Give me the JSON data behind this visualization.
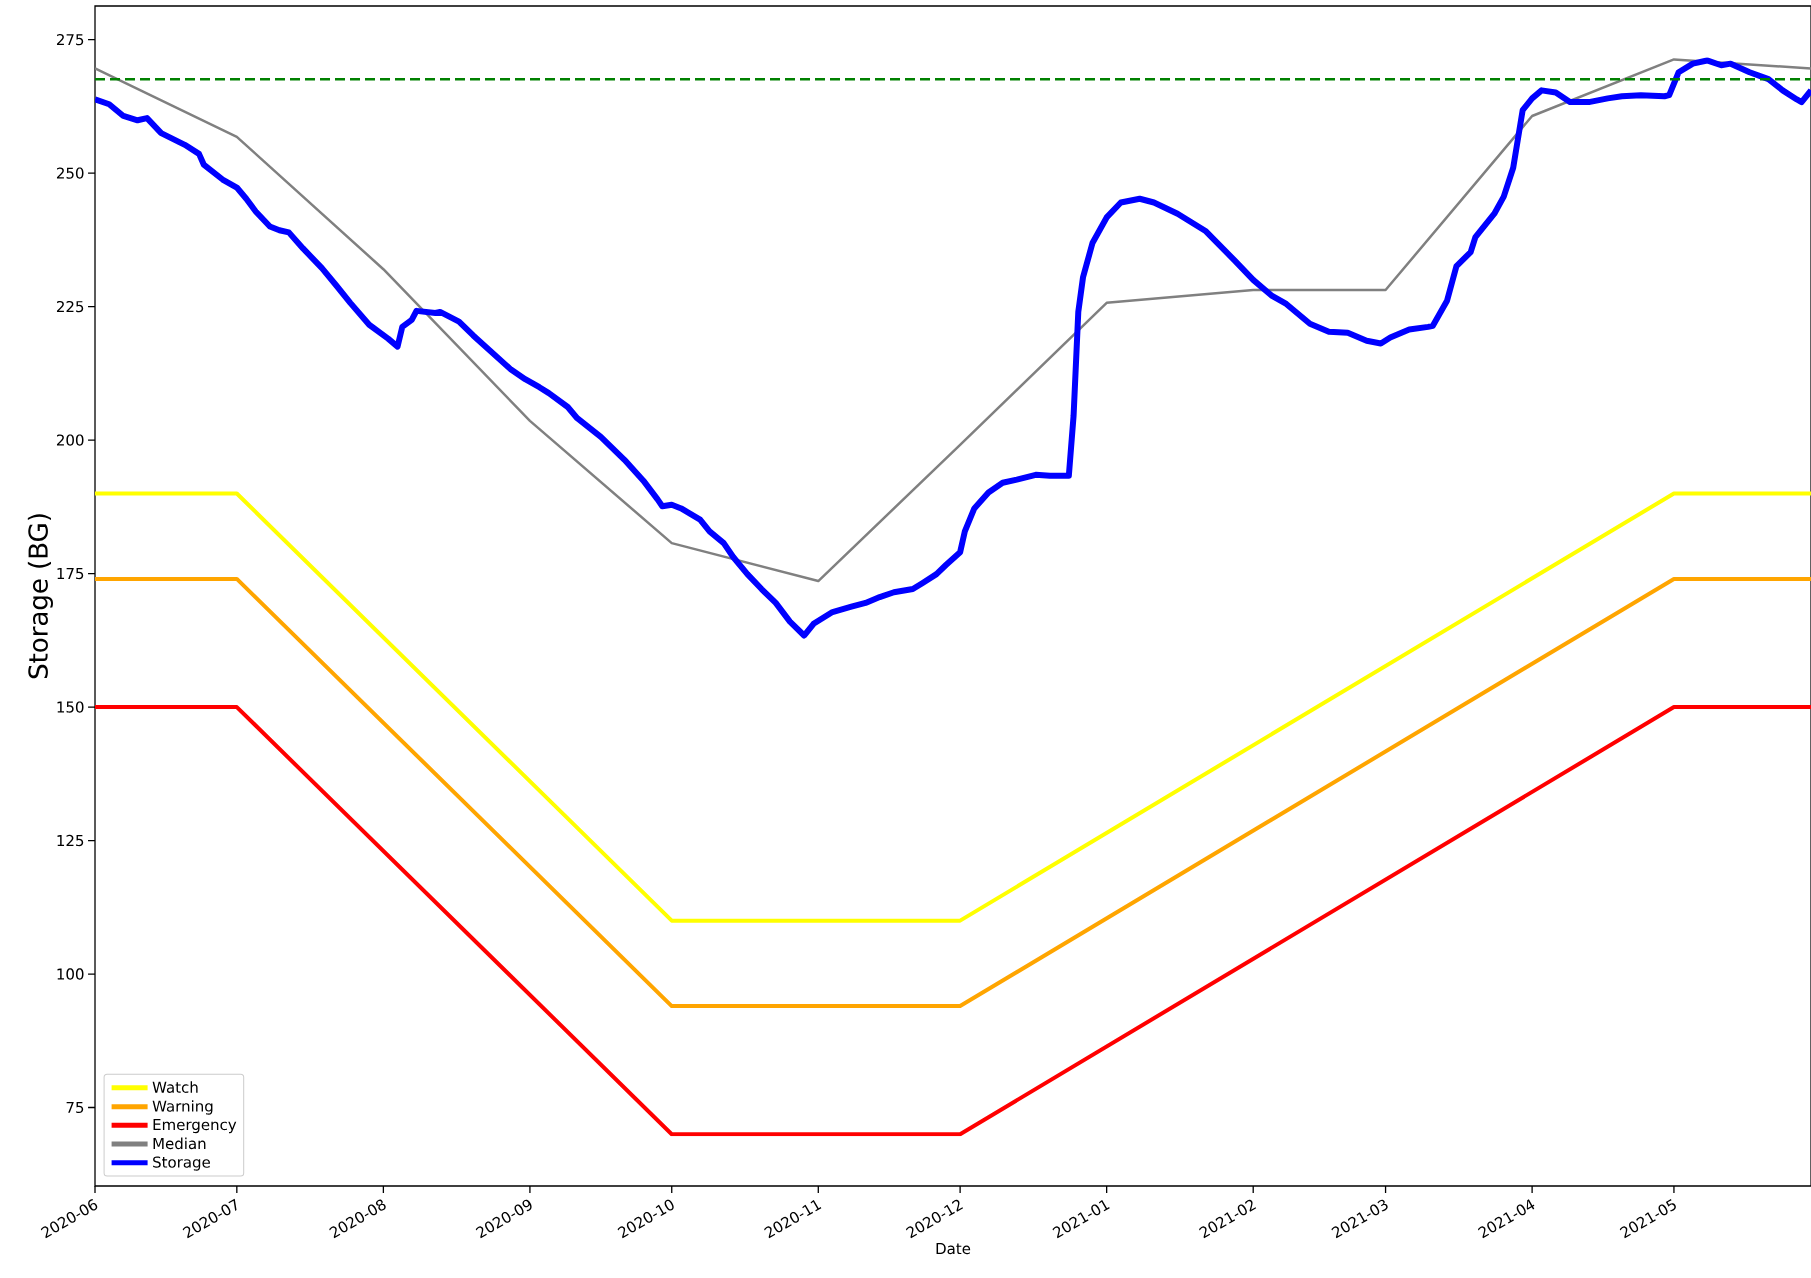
{
  "chart_data": {
    "type": "line",
    "xlabel": "Date",
    "ylabel": "Storage (BG)",
    "xlim": [
      "2020-06-01",
      "2021-05-30"
    ],
    "ylim": [
      60.3,
      281.3
    ],
    "xticks": [
      "2020-06",
      "2020-07",
      "2020-08",
      "2020-09",
      "2020-10",
      "2020-11",
      "2020-12",
      "2021-01",
      "2021-02",
      "2021-03",
      "2021-04",
      "2021-05"
    ],
    "yticks": [
      75,
      100,
      125,
      150,
      175,
      200,
      225,
      250,
      275
    ],
    "grid": false,
    "legend": "bottom left",
    "marker": "none",
    "ref_lines": [
      {
        "axis": "y",
        "value": 267.6,
        "color": "#008000",
        "line_style": "dashed"
      }
    ],
    "series": [
      {
        "name": "Watch",
        "color": "#ffff00",
        "x": [
          "2020-06-01",
          "2020-07-01",
          "2020-10-01",
          "2020-12-01",
          "2021-05-01",
          "2021-05-30"
        ],
        "values": [
          190,
          190,
          110,
          110,
          190,
          190
        ]
      },
      {
        "name": "Warning",
        "color": "#ffa500",
        "x": [
          "2020-06-01",
          "2020-07-01",
          "2020-10-01",
          "2020-12-01",
          "2021-05-01",
          "2021-05-30"
        ],
        "values": [
          174,
          174,
          94,
          94,
          174,
          174
        ]
      },
      {
        "name": "Emergency",
        "color": "#ff0000",
        "x": [
          "2020-06-01",
          "2020-07-01",
          "2020-10-01",
          "2020-12-01",
          "2021-05-01",
          "2021-05-30"
        ],
        "values": [
          150,
          150,
          70,
          70,
          150,
          150
        ]
      },
      {
        "name": "Median",
        "color": "#808080",
        "x": [
          "2020-06-01",
          "2020-07-01",
          "2020-08-01",
          "2020-09-01",
          "2020-10-01",
          "2020-11-01",
          "2020-12-01",
          "2021-01-01",
          "2021-02-01",
          "2021-03-01",
          "2021-04-01",
          "2021-05-01",
          "2021-05-30"
        ],
        "values": [
          269.6,
          256.8,
          232.0,
          203.6,
          180.7,
          173.6,
          199.1,
          225.7,
          228.1,
          228.1,
          260.7,
          271.3,
          269.6
        ]
      },
      {
        "name": "Storage",
        "color": "#0000ff",
        "x": [
          "2020-06-01",
          "2020-06-04",
          "2020-06-07",
          "2020-06-10",
          "2020-06-12",
          "2020-06-15",
          "2020-06-20",
          "2020-06-23",
          "2020-06-24",
          "2020-06-28",
          "2020-07-01",
          "2020-07-03",
          "2020-07-05",
          "2020-07-08",
          "2020-07-10",
          "2020-07-12",
          "2020-07-15",
          "2020-07-19",
          "2020-07-22",
          "2020-07-25",
          "2020-07-29",
          "2020-08-02",
          "2020-08-04",
          "2020-08-05",
          "2020-08-07",
          "2020-08-08",
          "2020-08-12",
          "2020-08-13",
          "2020-08-17",
          "2020-08-20",
          "2020-08-24",
          "2020-08-28",
          "2020-08-31",
          "2020-09-03",
          "2020-09-05",
          "2020-09-09",
          "2020-09-11",
          "2020-09-16",
          "2020-09-21",
          "2020-09-25",
          "2020-09-28",
          "2020-09-29",
          "2020-10-01",
          "2020-10-03",
          "2020-10-07",
          "2020-10-09",
          "2020-10-12",
          "2020-10-14",
          "2020-10-17",
          "2020-10-20",
          "2020-10-23",
          "2020-10-26",
          "2020-10-29",
          "2020-10-31",
          "2020-11-04",
          "2020-11-08",
          "2020-11-11",
          "2020-11-14",
          "2020-11-17",
          "2020-11-21",
          "2020-11-23",
          "2020-11-26",
          "2020-11-28",
          "2020-12-01",
          "2020-12-02",
          "2020-12-04",
          "2020-12-07",
          "2020-12-10",
          "2020-12-13",
          "2020-12-17",
          "2020-12-20",
          "2020-12-24",
          "2020-12-25",
          "2020-12-26",
          "2020-12-27",
          "2020-12-29",
          "2021-01-01",
          "2021-01-04",
          "2021-01-08",
          "2021-01-11",
          "2021-01-16",
          "2021-01-22",
          "2021-01-28",
          "2021-02-01",
          "2021-02-05",
          "2021-02-08",
          "2021-02-13",
          "2021-02-17",
          "2021-02-21",
          "2021-02-25",
          "2021-02-28",
          "2021-03-02",
          "2021-03-06",
          "2021-03-10",
          "2021-03-11",
          "2021-03-14",
          "2021-03-16",
          "2021-03-19",
          "2021-03-20",
          "2021-03-24",
          "2021-03-26",
          "2021-03-28",
          "2021-03-30",
          "2021-04-01",
          "2021-04-03",
          "2021-04-06",
          "2021-04-09",
          "2021-04-13",
          "2021-04-17",
          "2021-04-20",
          "2021-04-24",
          "2021-04-29",
          "2021-04-30",
          "2021-05-02",
          "2021-05-05",
          "2021-05-08",
          "2021-05-11",
          "2021-05-13",
          "2021-05-17",
          "2021-05-21",
          "2021-05-24",
          "2021-05-27",
          "2021-05-28",
          "2021-05-30"
        ],
        "values": [
          263.8,
          262.9,
          260.7,
          259.9,
          260.3,
          257.5,
          255.3,
          253.6,
          251.6,
          248.8,
          247.3,
          245.2,
          242.8,
          240.0,
          239.3,
          238.9,
          235.9,
          232.2,
          229.0,
          225.7,
          221.6,
          219.0,
          217.5,
          221.2,
          222.5,
          224.2,
          223.8,
          224.0,
          222.2,
          219.6,
          216.4,
          213.2,
          211.4,
          209.9,
          208.8,
          206.2,
          204.1,
          200.6,
          196.3,
          192.4,
          188.9,
          187.6,
          187.9,
          187.2,
          185.1,
          182.9,
          180.7,
          178.1,
          174.9,
          172.1,
          169.5,
          166.0,
          163.4,
          165.6,
          167.8,
          168.8,
          169.5,
          170.6,
          171.5,
          172.1,
          173.2,
          174.9,
          176.6,
          179.0,
          182.9,
          187.2,
          190.2,
          192.0,
          192.6,
          193.5,
          193.3,
          193.3,
          204.5,
          224.0,
          230.5,
          236.9,
          241.7,
          244.5,
          245.2,
          244.5,
          242.4,
          239.1,
          233.7,
          230.0,
          227.0,
          225.5,
          221.8,
          220.3,
          220.1,
          218.6,
          218.1,
          219.2,
          220.7,
          221.2,
          221.4,
          226.1,
          232.6,
          235.2,
          238.0,
          242.4,
          245.6,
          251.0,
          261.8,
          264.0,
          265.5,
          265.1,
          263.3,
          263.3,
          264.0,
          264.4,
          264.6,
          264.4,
          264.6,
          268.9,
          270.5,
          271.1,
          270.2,
          270.5,
          268.9,
          267.6,
          265.5,
          263.8,
          263.3,
          265.5
        ]
      }
    ]
  }
}
